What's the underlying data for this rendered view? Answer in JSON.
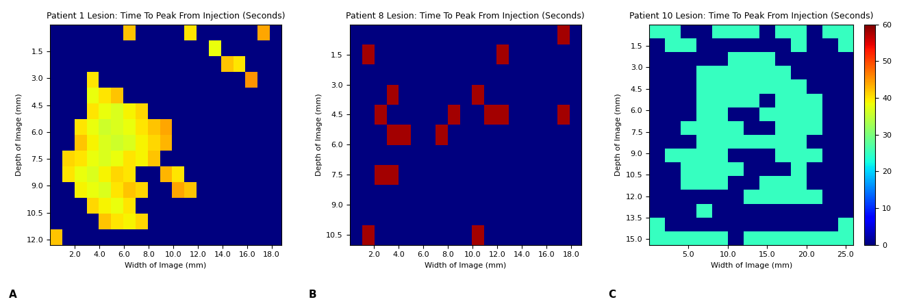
{
  "chart_data": [
    {
      "type": "heatmap",
      "panel_label": "A",
      "title": "Patient 1 Lesion: Time To Peak From Injection (Seconds)",
      "x_label": "Width of Image (mm)",
      "y_label": "Depth of Image (mm)",
      "xlim": [
        0,
        18.8
      ],
      "ylim": [
        12.3,
        0
      ],
      "xticks": [
        2.0,
        4.0,
        6.0,
        8.0,
        10.0,
        12.0,
        14.0,
        16.0,
        18.0
      ],
      "yticks": [
        1.5,
        3.0,
        4.5,
        6.0,
        7.5,
        9.0,
        10.5,
        12.0
      ],
      "color": "jet",
      "color_range": [
        0,
        60
      ],
      "cells": [
        [
          0,
          0,
          0,
          0,
          0,
          0,
          42,
          0,
          0,
          0,
          0,
          40,
          0,
          0,
          0,
          0,
          0,
          44,
          0
        ],
        [
          0,
          0,
          0,
          0,
          0,
          0,
          0,
          0,
          0,
          0,
          0,
          0,
          0,
          38,
          0,
          0,
          0,
          0,
          0
        ],
        [
          0,
          0,
          0,
          0,
          0,
          0,
          0,
          0,
          0,
          0,
          0,
          0,
          0,
          0,
          42,
          40,
          0,
          0,
          0
        ],
        [
          0,
          0,
          0,
          40,
          0,
          0,
          0,
          0,
          0,
          0,
          0,
          0,
          0,
          0,
          0,
          0,
          45,
          0,
          0
        ],
        [
          0,
          0,
          0,
          38,
          40,
          42,
          0,
          0,
          0,
          0,
          0,
          0,
          0,
          0,
          0,
          0,
          0,
          0,
          0
        ],
        [
          0,
          0,
          0,
          40,
          38,
          37,
          39,
          41,
          0,
          0,
          0,
          0,
          0,
          0,
          0,
          0,
          0,
          0,
          0
        ],
        [
          0,
          0,
          40,
          38,
          36,
          37,
          38,
          40,
          42,
          44,
          0,
          0,
          0,
          0,
          0,
          0,
          0,
          0,
          0
        ],
        [
          0,
          0,
          42,
          39,
          37,
          36,
          37,
          39,
          41,
          43,
          0,
          0,
          0,
          0,
          0,
          0,
          0,
          0,
          0
        ],
        [
          0,
          41,
          40,
          38,
          37,
          38,
          40,
          39,
          42,
          0,
          0,
          0,
          0,
          0,
          0,
          0,
          0,
          0,
          0
        ],
        [
          0,
          40,
          38,
          37,
          39,
          41,
          40,
          0,
          0,
          43,
          40,
          0,
          0,
          0,
          0,
          0,
          0,
          0,
          0
        ],
        [
          0,
          0,
          39,
          38,
          37,
          40,
          42,
          41,
          0,
          0,
          44,
          42,
          0,
          0,
          0,
          0,
          0,
          0,
          0
        ],
        [
          0,
          0,
          0,
          41,
          39,
          38,
          40,
          0,
          0,
          0,
          0,
          0,
          0,
          0,
          0,
          0,
          0,
          0,
          0
        ],
        [
          0,
          0,
          0,
          0,
          42,
          40,
          39,
          41,
          0,
          0,
          0,
          0,
          0,
          0,
          0,
          0,
          0,
          0,
          0
        ],
        [
          42,
          0,
          0,
          0,
          0,
          0,
          0,
          0,
          0,
          0,
          0,
          0,
          0,
          0,
          0,
          0,
          0,
          0,
          0
        ]
      ]
    },
    {
      "type": "heatmap",
      "panel_label": "B",
      "title": "Patient 8 Lesion: Time To Peak From Injection (Seconds)",
      "x_label": "Width of Image (mm)",
      "y_label": "Depth of Image (mm)",
      "xlim": [
        0,
        18.8
      ],
      "ylim": [
        11.0,
        0
      ],
      "xticks": [
        2.0,
        4.0,
        6.0,
        8.0,
        10.0,
        12.0,
        14.0,
        16.0,
        18.0
      ],
      "yticks": [
        1.5,
        3.0,
        4.5,
        6.0,
        7.5,
        9.0,
        10.5
      ],
      "color": "jet",
      "color_range": [
        0,
        60
      ],
      "cells": [
        [
          0,
          0,
          0,
          0,
          0,
          0,
          0,
          0,
          0,
          0,
          0,
          0,
          0,
          0,
          0,
          0,
          0,
          58,
          0
        ],
        [
          0,
          58,
          0,
          0,
          0,
          0,
          0,
          0,
          0,
          0,
          0,
          0,
          58,
          0,
          0,
          0,
          0,
          0,
          0
        ],
        [
          0,
          0,
          0,
          0,
          0,
          0,
          0,
          0,
          0,
          0,
          0,
          0,
          0,
          0,
          0,
          0,
          0,
          0,
          0
        ],
        [
          0,
          0,
          0,
          58,
          0,
          0,
          0,
          0,
          0,
          0,
          58,
          0,
          0,
          0,
          0,
          0,
          0,
          0,
          0
        ],
        [
          0,
          0,
          58,
          0,
          0,
          0,
          0,
          0,
          58,
          0,
          0,
          58,
          58,
          0,
          0,
          0,
          0,
          58,
          0
        ],
        [
          0,
          0,
          0,
          58,
          58,
          0,
          0,
          58,
          0,
          0,
          0,
          0,
          0,
          0,
          0,
          0,
          0,
          0,
          0
        ],
        [
          0,
          0,
          0,
          0,
          0,
          0,
          0,
          0,
          0,
          0,
          0,
          0,
          0,
          0,
          0,
          0,
          0,
          0,
          0
        ],
        [
          0,
          0,
          58,
          58,
          0,
          0,
          0,
          0,
          0,
          0,
          0,
          0,
          0,
          0,
          0,
          0,
          0,
          0,
          0
        ],
        [
          0,
          0,
          0,
          0,
          0,
          0,
          0,
          0,
          0,
          0,
          0,
          0,
          0,
          0,
          0,
          0,
          0,
          0,
          0
        ],
        [
          0,
          0,
          0,
          0,
          0,
          0,
          0,
          0,
          0,
          0,
          0,
          0,
          0,
          0,
          0,
          0,
          0,
          0,
          0
        ],
        [
          0,
          58,
          0,
          0,
          0,
          0,
          0,
          0,
          0,
          0,
          58,
          0,
          0,
          0,
          0,
          0,
          0,
          0,
          0
        ]
      ]
    },
    {
      "type": "heatmap",
      "panel_label": "C",
      "title": "Patient 10 Lesion: Time To Peak From Injection (Seconds)",
      "x_label": "Width of Image (mm)",
      "y_label": "Depth of Image (mm)",
      "xlim": [
        0,
        26.0
      ],
      "ylim": [
        15.4,
        0
      ],
      "xticks": [
        5.0,
        10.0,
        15.0,
        20.0,
        25.0
      ],
      "yticks": [
        1.5,
        3.0,
        4.5,
        6.0,
        7.5,
        9.0,
        10.5,
        12.0,
        13.5,
        15.0
      ],
      "color": "jet",
      "color_range": [
        0,
        60
      ],
      "colorbar_ticks": [
        0,
        10,
        20,
        30,
        40,
        50,
        60
      ],
      "cells": [
        [
          25,
          25,
          0,
          0,
          25,
          25,
          25,
          0,
          25,
          25,
          0,
          25,
          25
        ],
        [
          0,
          25,
          25,
          0,
          0,
          0,
          0,
          0,
          0,
          25,
          0,
          0,
          25
        ],
        [
          0,
          0,
          0,
          0,
          0,
          25,
          25,
          25,
          0,
          0,
          0,
          0,
          0
        ],
        [
          0,
          0,
          0,
          25,
          25,
          25,
          25,
          25,
          25,
          0,
          0,
          0,
          0
        ],
        [
          0,
          0,
          0,
          25,
          25,
          25,
          25,
          25,
          25,
          25,
          0,
          0,
          0
        ],
        [
          0,
          0,
          0,
          25,
          25,
          25,
          25,
          0,
          25,
          25,
          25,
          0,
          0
        ],
        [
          0,
          0,
          0,
          25,
          25,
          0,
          0,
          25,
          25,
          25,
          25,
          0,
          0
        ],
        [
          0,
          0,
          25,
          25,
          25,
          25,
          0,
          0,
          25,
          25,
          25,
          0,
          0
        ],
        [
          0,
          0,
          0,
          25,
          25,
          25,
          25,
          25,
          25,
          25,
          0,
          0,
          0
        ],
        [
          0,
          25,
          25,
          25,
          25,
          0,
          0,
          0,
          25,
          25,
          25,
          0,
          0
        ],
        [
          0,
          0,
          25,
          25,
          25,
          25,
          0,
          0,
          0,
          25,
          0,
          0,
          0
        ],
        [
          0,
          0,
          25,
          25,
          25,
          0,
          0,
          25,
          25,
          25,
          0,
          0,
          0
        ],
        [
          0,
          0,
          0,
          0,
          0,
          0,
          25,
          25,
          25,
          25,
          25,
          0,
          0
        ],
        [
          0,
          0,
          0,
          25,
          0,
          0,
          0,
          0,
          0,
          0,
          0,
          0,
          0
        ],
        [
          25,
          0,
          0,
          0,
          0,
          0,
          0,
          0,
          0,
          0,
          0,
          0,
          25
        ],
        [
          25,
          25,
          25,
          25,
          25,
          0,
          25,
          25,
          25,
          25,
          25,
          25,
          25
        ]
      ]
    }
  ]
}
